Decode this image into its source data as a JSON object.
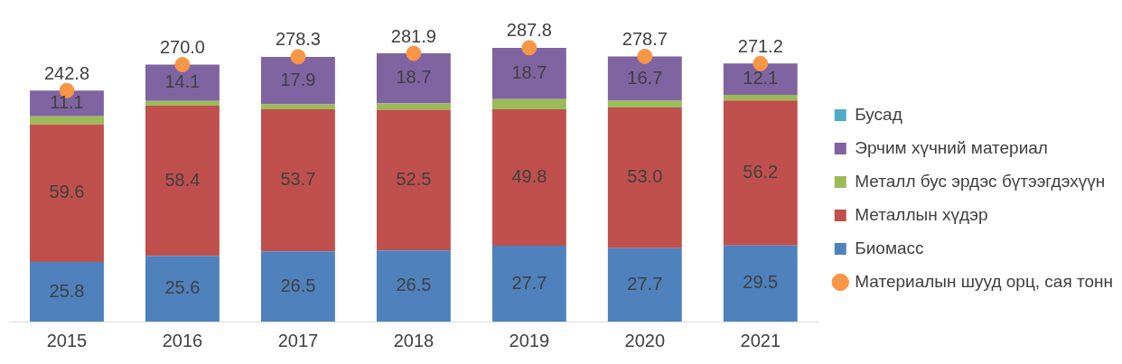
{
  "chart_data": {
    "type": "bar",
    "stacked": true,
    "legend": "right",
    "grid": false,
    "tick_labels": "x",
    "categories": [
      "2015",
      "2016",
      "2017",
      "2018",
      "2019",
      "2020",
      "2021"
    ],
    "series": [
      {
        "name": "Биомасс",
        "color": "#4f81bd",
        "values": [
          62.6,
          69.1,
          73.7,
          74.7,
          79.7,
          77.2,
          80.0
        ]
      },
      {
        "name": "Металлын хүдэр",
        "color": "#c0504d",
        "values": [
          144.7,
          157.7,
          149.4,
          148.0,
          143.3,
          147.7,
          152.4
        ]
      },
      {
        "name": "Металл бус эрдэс бүтээгдэхүүн",
        "color": "#9bbb59",
        "values": [
          8.5,
          5.1,
          5.3,
          6.5,
          10.9,
          7.2,
          6.0
        ]
      },
      {
        "name": "Эрчим хүчний материал",
        "color": "#8064a2",
        "values": [
          27.0,
          38.1,
          49.8,
          52.7,
          53.8,
          46.5,
          32.8
        ]
      },
      {
        "name": "Бусад",
        "color": "#4bacc6",
        "values": [
          0,
          0,
          0,
          0,
          0,
          0,
          0
        ]
      },
      {
        "name": "Материалын шууд орц, сая тонн",
        "type": "scatter",
        "marker": "circle",
        "color": "#f79646",
        "values": [
          242.8,
          270.0,
          278.3,
          281.9,
          287.8,
          278.7,
          271.2
        ],
        "value_labels": [
          "242.8",
          "270.0",
          "278.3",
          "281.9",
          "287.8",
          "278.7",
          "271.2"
        ]
      }
    ],
    "annotations": [
      {
        "text": "25.8",
        "x": "2015",
        "y": 62.6
      },
      "59.6",
      {
        "text": "11.1",
        "x": "2015",
        "y": 242.8
      },
      {
        "text": "25.6",
        "x": "2016",
        "y": 69.1
      },
      "58.4",
      {
        "text": "14.1",
        "x": "2016",
        "y": 270.0
      },
      {
        "text": "26.5",
        "x": "2017",
        "y": 73.7
      },
      "53.7",
      {
        "text": "17.9",
        "x": "2017",
        "y": 278.2
      },
      {
        "text": "26.5",
        "x": "2018",
        "y": 74.7
      },
      "52.5",
      {
        "text": "18.7",
        "x": "2018",
        "y": 281.9
      },
      {
        "text": "27.7",
        "x": "2019",
        "y": 79.7
      },
      "49.8",
      {
        "text": "18.7",
        "x": "2019",
        "y": 287.7
      },
      {
        "text": "27.7",
        "x": "2020",
        "y": 77.2
      },
      "53.0",
      {
        "text": "16.7",
        "x": "2020",
        "y": 278.6
      },
      {
        "text": "29.5",
        "x": "2021",
        "y": 80.0
      },
      "56.2",
      {
        "text": "12.1",
        "x": "2021",
        "y": 271.2
      }
    ]
  }
}
